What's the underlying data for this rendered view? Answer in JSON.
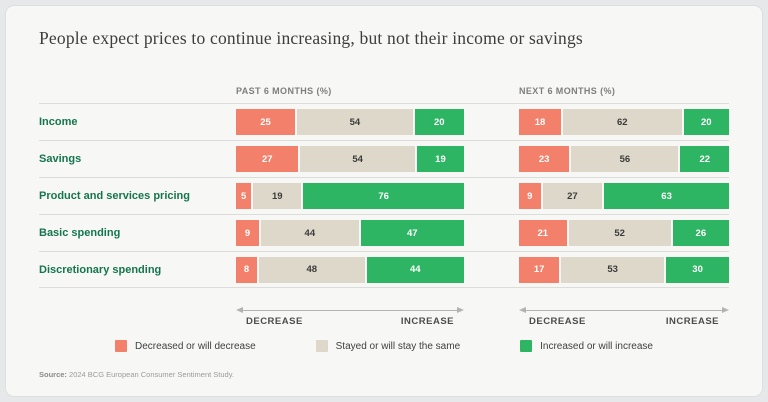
{
  "title": "People expect prices to continue increasing, but not their income or savings",
  "columns": {
    "past_header": "PAST 6 MONTHS (%)",
    "next_header": "NEXT 6 MONTHS (%)"
  },
  "rows": [
    {
      "label": "Income",
      "past": [
        25,
        54,
        20
      ],
      "next": [
        18,
        62,
        20
      ]
    },
    {
      "label": "Savings",
      "past": [
        27,
        54,
        19
      ],
      "next": [
        23,
        56,
        22
      ]
    },
    {
      "label": "Product and services pricing",
      "past": [
        5,
        19,
        76
      ],
      "next": [
        9,
        27,
        63
      ]
    },
    {
      "label": "Basic spending",
      "past": [
        9,
        44,
        47
      ],
      "next": [
        21,
        52,
        26
      ]
    },
    {
      "label": "Discretionary spending",
      "past": [
        8,
        48,
        44
      ],
      "next": [
        17,
        53,
        30
      ]
    }
  ],
  "axis": {
    "decrease_label": "DECREASE",
    "increase_label": "INCREASE"
  },
  "legend": [
    {
      "label": "Decreased or will decrease",
      "color_key": "decrease"
    },
    {
      "label": "Stayed or will stay the same",
      "color_key": "same"
    },
    {
      "label": "Increased or will increase",
      "color_key": "increase"
    }
  ],
  "colors": {
    "decrease": "#F2806A",
    "same": "#DED8CA",
    "increase": "#2EB563",
    "label_green": "#15764E"
  },
  "source": {
    "label": "Source:",
    "text": "2024 BCG European Consumer Sentiment Study."
  },
  "chart_data": {
    "type": "bar",
    "variant": "horizontal-stacked",
    "title": "People expect prices to continue increasing, but not their income or savings",
    "categories": [
      "Income",
      "Savings",
      "Product and services pricing",
      "Basic spending",
      "Discretionary spending"
    ],
    "groups": [
      {
        "name": "PAST 6 MONTHS (%)",
        "series": [
          {
            "name": "Decreased or will decrease",
            "values": [
              25,
              27,
              5,
              9,
              8
            ]
          },
          {
            "name": "Stayed or will stay the same",
            "values": [
              54,
              54,
              19,
              44,
              48
            ]
          },
          {
            "name": "Increased or will increase",
            "values": [
              20,
              19,
              76,
              47,
              44
            ]
          }
        ]
      },
      {
        "name": "NEXT 6 MONTHS (%)",
        "series": [
          {
            "name": "Decreased or will decrease",
            "values": [
              18,
              23,
              9,
              21,
              17
            ]
          },
          {
            "name": "Stayed or will stay the same",
            "values": [
              62,
              56,
              27,
              52,
              53
            ]
          },
          {
            "name": "Increased or will increase",
            "values": [
              20,
              22,
              63,
              26,
              30
            ]
          }
        ]
      }
    ],
    "xlim": [
      0,
      100
    ],
    "axis_annotation": "DECREASE ↔ INCREASE under each group",
    "legend_position": "bottom-center",
    "grid": false
  }
}
